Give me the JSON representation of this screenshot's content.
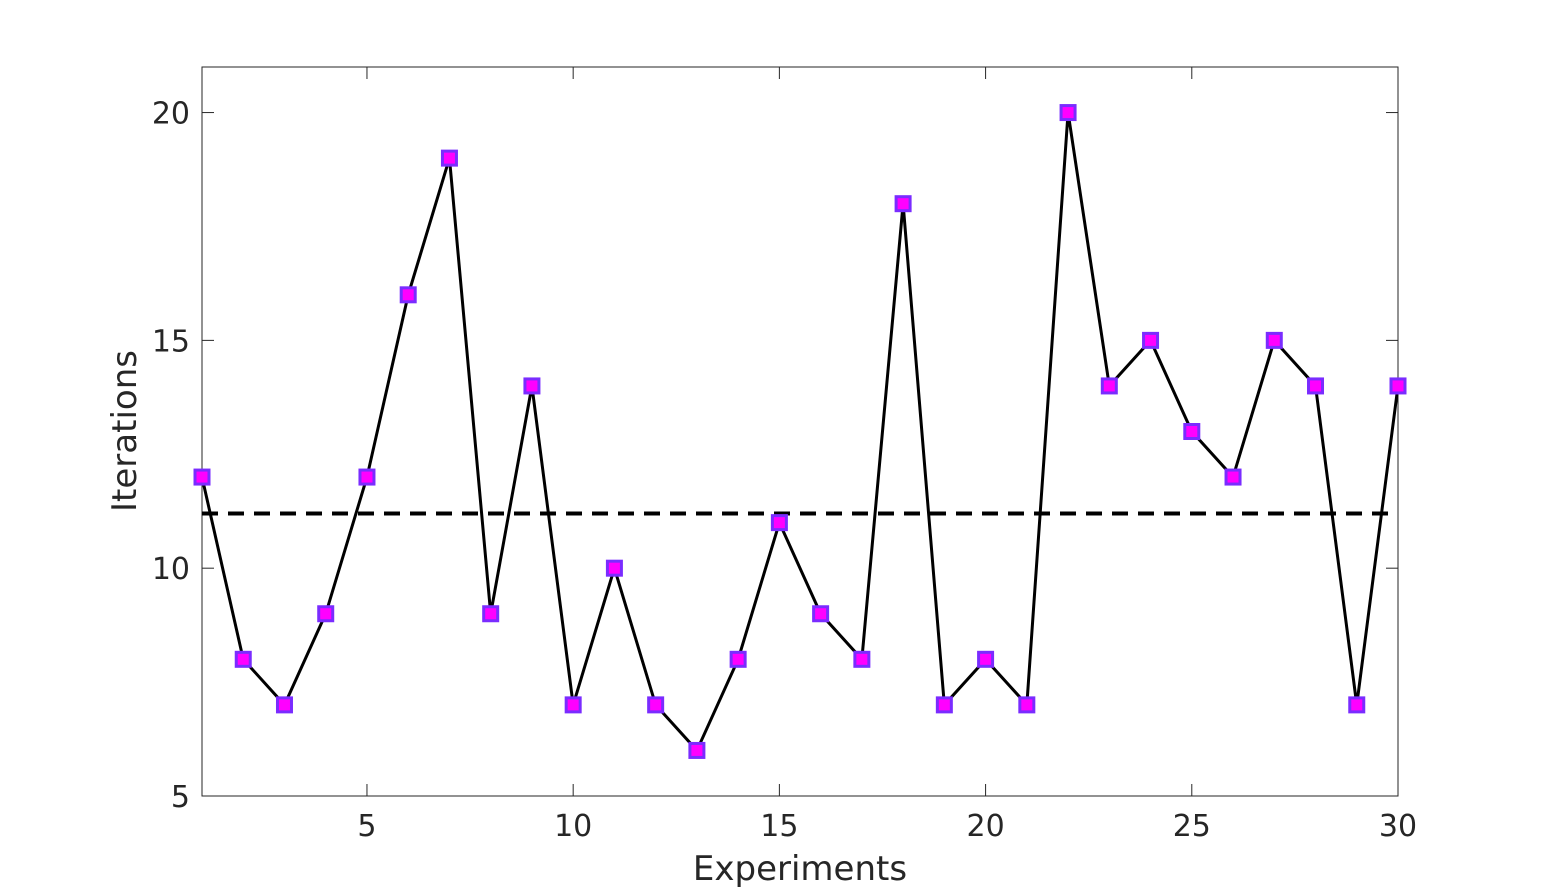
{
  "chart_data": {
    "type": "line",
    "xlabel": "Experiments",
    "ylabel": "Iterations",
    "xlim": [
      1,
      30
    ],
    "ylim": [
      5,
      21
    ],
    "xticks": [
      5,
      10,
      15,
      20,
      25,
      30
    ],
    "yticks": [
      5,
      10,
      15,
      20
    ],
    "grid": false,
    "series": [
      {
        "x": [
          1,
          2,
          3,
          4,
          5,
          6,
          7,
          8,
          9,
          10,
          11,
          12,
          13,
          14,
          15,
          16,
          17,
          18,
          19,
          20,
          21,
          22,
          23,
          24,
          25,
          26,
          27,
          28,
          29,
          30
        ],
        "y": [
          12,
          8,
          7,
          9,
          12,
          16,
          19,
          9,
          14,
          7,
          10,
          7,
          6,
          8,
          11,
          9,
          8,
          18,
          7,
          8,
          7,
          20,
          14,
          15,
          13,
          12,
          15,
          14,
          7,
          14
        ],
        "line_color": "#000000",
        "marker": "square",
        "marker_fill": "#ff00ff",
        "marker_edge": "#7a2cff"
      }
    ],
    "reference_line": {
      "y": 11.2,
      "style": "dashed",
      "color": "#000000"
    }
  }
}
